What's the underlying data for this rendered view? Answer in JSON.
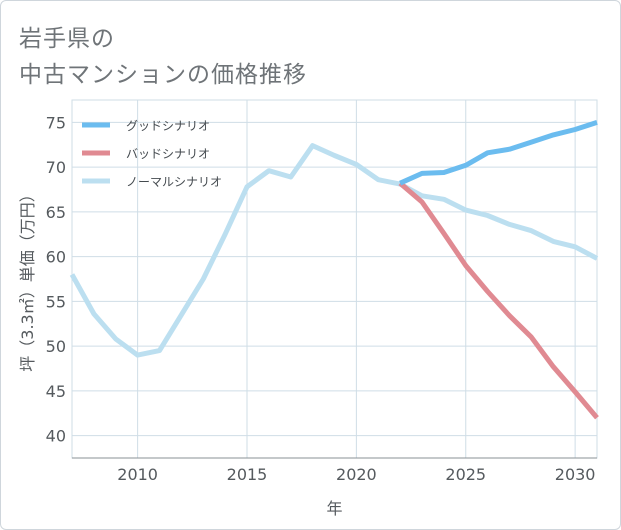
{
  "page": {
    "title_line1": "岩手県の",
    "title_line2": "中古マンションの価格推移"
  },
  "colors": {
    "good": "#6bbcef",
    "bad": "#e08a92",
    "normal": "#bcdff0",
    "grid": "#cfdde6",
    "axis": "#8a9196"
  },
  "chart_data": {
    "type": "line",
    "title": "岩手県の中古マンションの価格推移",
    "xlabel": "年",
    "ylabel": "坪（3.3㎡）単価（万円）",
    "xlim": [
      2007,
      2031
    ],
    "ylim": [
      37.5,
      77.5
    ],
    "xticks": [
      2010,
      2015,
      2020,
      2025,
      2030
    ],
    "yticks": [
      40,
      45,
      50,
      55,
      60,
      65,
      70,
      75
    ],
    "legend_position": "top-left",
    "series": [
      {
        "name": "グッドシナリオ",
        "color_key": "good",
        "points": [
          [
            2022,
            68.2
          ],
          [
            2023,
            69.3
          ],
          [
            2024,
            69.4
          ],
          [
            2025,
            70.2
          ],
          [
            2026,
            71.6
          ],
          [
            2027,
            72.0
          ],
          [
            2028,
            72.8
          ],
          [
            2029,
            73.6
          ],
          [
            2030,
            74.2
          ],
          [
            2031,
            75.0
          ]
        ]
      },
      {
        "name": "バッドシナリオ",
        "color_key": "bad",
        "points": [
          [
            2022,
            68.2
          ],
          [
            2023,
            66.1
          ],
          [
            2024,
            62.6
          ],
          [
            2025,
            59.0
          ],
          [
            2026,
            56.1
          ],
          [
            2027,
            53.4
          ],
          [
            2028,
            51.0
          ],
          [
            2029,
            47.7
          ],
          [
            2030,
            44.9
          ],
          [
            2031,
            42.0
          ]
        ]
      },
      {
        "name": "ノーマルシナリオ",
        "color_key": "normal",
        "points": [
          [
            2007,
            58.0
          ],
          [
            2008,
            53.6
          ],
          [
            2009,
            50.8
          ],
          [
            2010,
            49.0
          ],
          [
            2011,
            49.5
          ],
          [
            2012,
            53.5
          ],
          [
            2013,
            57.5
          ],
          [
            2014,
            62.5
          ],
          [
            2015,
            67.8
          ],
          [
            2016,
            69.6
          ],
          [
            2017,
            68.9
          ],
          [
            2018,
            72.4
          ],
          [
            2019,
            71.3
          ],
          [
            2020,
            70.3
          ],
          [
            2021,
            68.6
          ],
          [
            2022,
            68.1
          ],
          [
            2023,
            66.8
          ],
          [
            2024,
            66.4
          ],
          [
            2025,
            65.2
          ],
          [
            2026,
            64.6
          ],
          [
            2027,
            63.6
          ],
          [
            2028,
            62.9
          ],
          [
            2029,
            61.7
          ],
          [
            2030,
            61.1
          ],
          [
            2031,
            59.8
          ]
        ]
      }
    ]
  }
}
